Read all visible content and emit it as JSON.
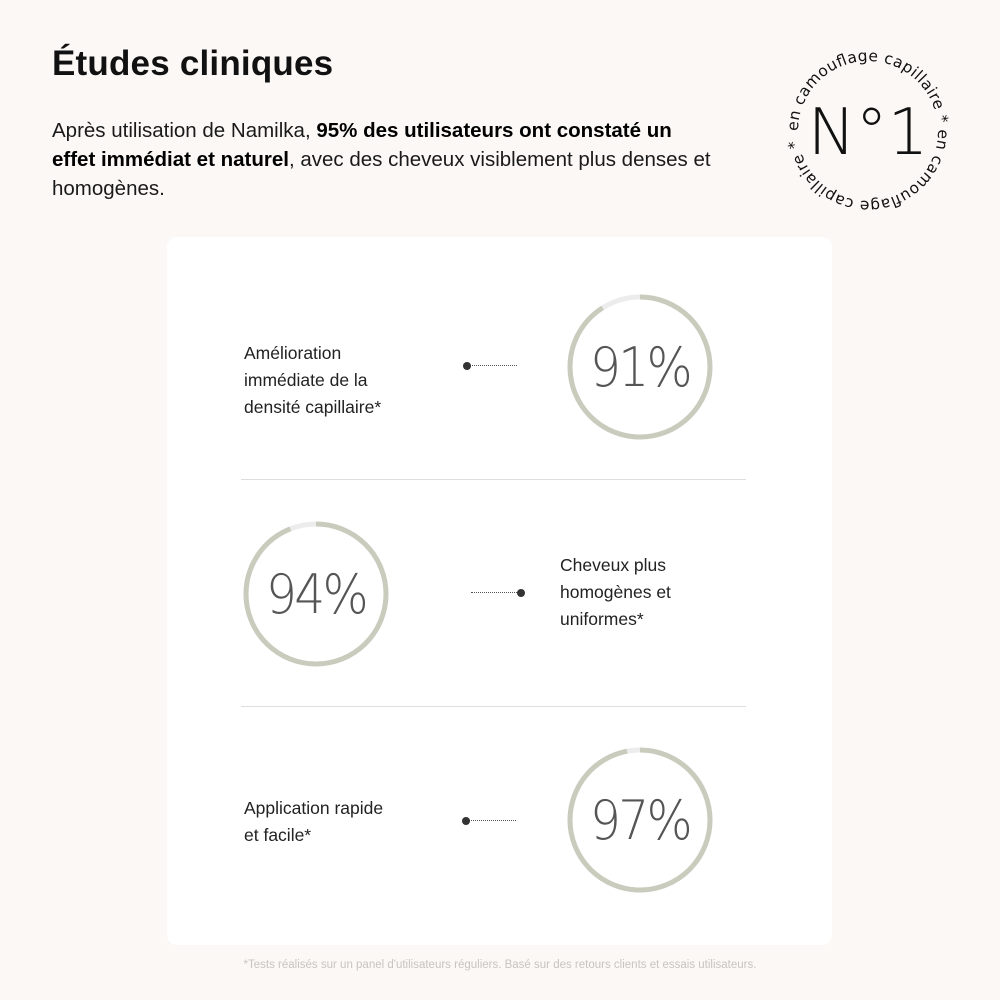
{
  "header": {
    "title": "Études cliniques",
    "intro_before": "Après utilisation de Namilka, ",
    "intro_bold": "95% des utilisateurs ont constaté un effet immédiat et naturel",
    "intro_after": ", avec des cheveux visiblement plus denses et homogènes."
  },
  "badge": {
    "center": "N°1",
    "circular_text": "en camouflage capillaire * en camouflage capillaire * "
  },
  "colors": {
    "background": "#fbf8f5",
    "ring": "#c9cbbd",
    "ring_track": "#ececec"
  },
  "stats": [
    {
      "value": "91%",
      "percent": 91,
      "label": "Amélioration\nimmédiate de la\ndensité capillaire*"
    },
    {
      "value": "94%",
      "percent": 94,
      "label": "Cheveux plus\nhomogènes et\nuniformes*"
    },
    {
      "value": "97%",
      "percent": 97,
      "label": "Application rapide\net facile*"
    }
  ],
  "footnote": "*Tests réalisés sur un panel d'utilisateurs réguliers. Basé sur des retours clients et essais utilisateurs."
}
